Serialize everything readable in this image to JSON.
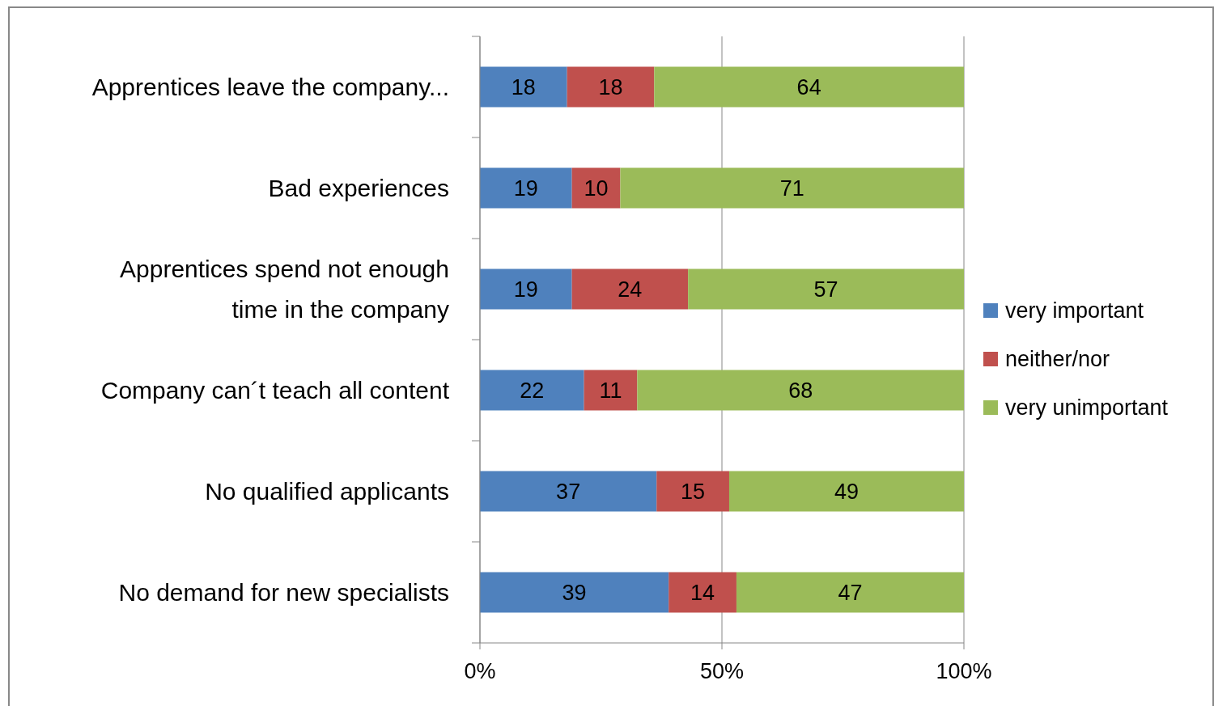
{
  "chart_data": {
    "type": "bar",
    "orientation": "horizontal",
    "stacked": true,
    "categories": [
      "Apprentices leave the company...",
      "Bad experiences",
      "Apprentices spend not enough time in the company",
      "Company can´t teach all content",
      "No qualified applicants",
      "No demand for new specialists"
    ],
    "series": [
      {
        "name": "very important",
        "color": "#4f81bd",
        "values": [
          18,
          19,
          19,
          21.5,
          36.5,
          39
        ],
        "value_labels": [
          "18",
          "19",
          "19",
          "22",
          "37",
          "39"
        ]
      },
      {
        "name": "neither/nor",
        "color": "#c0504d",
        "values": [
          18,
          10,
          24,
          11,
          15,
          14
        ],
        "value_labels": [
          "18",
          "10",
          "24",
          "11",
          "15",
          "14"
        ]
      },
      {
        "name": "very unimportant",
        "color": "#9bbb59",
        "values": [
          64,
          71,
          57,
          67.5,
          48.5,
          47
        ],
        "value_labels": [
          "64",
          "71",
          "57",
          "68",
          "49",
          "47"
        ]
      }
    ],
    "xlim": [
      0,
      100
    ],
    "xticks": [
      {
        "value": 0,
        "label": "0%"
      },
      {
        "value": 50,
        "label": "50%"
      },
      {
        "value": 100,
        "label": "100%"
      }
    ],
    "grid": "x",
    "legend": "right"
  }
}
